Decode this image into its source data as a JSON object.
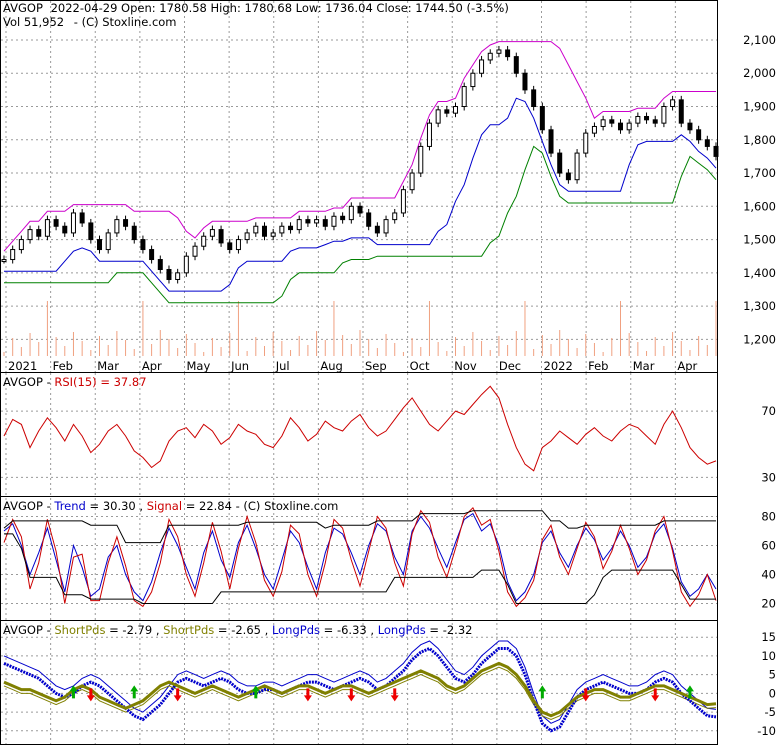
{
  "chart_data": [
    {
      "type": "candlestick",
      "header": {
        "ticker": "AVGOP",
        "text": "2022-04-29 Open: 1780.58  High: 1780.68  Low: 1736.04  Close: 1744.50 (-3.5%)",
        "vol": "Vol 51,952",
        "credit": "(C) Stoxline.com"
      },
      "ylim": [
        1150,
        2130
      ],
      "y_ticks": [
        "1,200",
        "1,300",
        "1,400",
        "1,500",
        "1,600",
        "1,700",
        "1,800",
        "1,900",
        "2,000",
        "2,100"
      ],
      "x_ticks": [
        "2021",
        "Feb",
        "Mar",
        "Apr",
        "May",
        "Jun",
        "Jul",
        "Aug",
        "Sep",
        "Oct",
        "Nov",
        "Dec",
        "2022",
        "Feb",
        "Mar",
        "Apr"
      ],
      "price_path": [
        1440,
        1470,
        1500,
        1530,
        1510,
        1560,
        1540,
        1520,
        1580,
        1550,
        1500,
        1470,
        1520,
        1560,
        1540,
        1500,
        1470,
        1440,
        1410,
        1380,
        1400,
        1450,
        1480,
        1510,
        1530,
        1490,
        1470,
        1500,
        1520,
        1540,
        1510,
        1520,
        1540,
        1530,
        1560,
        1550,
        1560,
        1540,
        1570,
        1560,
        1600,
        1580,
        1540,
        1520,
        1560,
        1580,
        1650,
        1700,
        1780,
        1850,
        1890,
        1880,
        1900,
        1960,
        2000,
        2040,
        2060,
        2070,
        2050,
        2000,
        1950,
        1900,
        1830,
        1760,
        1700,
        1680,
        1760,
        1820,
        1840,
        1860,
        1850,
        1830,
        1850,
        1870,
        1860,
        1850,
        1900,
        1920,
        1850,
        1830,
        1800,
        1780,
        1750
      ]
    },
    {
      "type": "line",
      "label": "RSI(15) = 37.87",
      "ticker": "AVGOP",
      "ylim": [
        20,
        90
      ],
      "y_ticks": [
        "30",
        "70"
      ],
      "values": [
        55,
        65,
        62,
        48,
        58,
        66,
        60,
        52,
        62,
        55,
        45,
        50,
        58,
        62,
        55,
        46,
        42,
        36,
        40,
        52,
        58,
        60,
        54,
        62,
        58,
        50,
        54,
        62,
        58,
        56,
        50,
        48,
        55,
        66,
        60,
        52,
        56,
        64,
        60,
        58,
        64,
        68,
        60,
        55,
        58,
        65,
        72,
        78,
        70,
        62,
        58,
        64,
        70,
        68,
        74,
        80,
        85,
        78,
        62,
        48,
        38,
        34,
        48,
        52,
        58,
        54,
        50,
        56,
        60,
        55,
        52,
        58,
        62,
        60,
        55,
        50,
        62,
        70,
        60,
        48,
        42,
        38,
        40
      ]
    },
    {
      "type": "line",
      "ticker": "AVGOP",
      "credit": "(C) Stoxline.com",
      "ylim": [
        10,
        90
      ],
      "y_ticks": [
        "20",
        "40",
        "60",
        "80"
      ],
      "series": [
        {
          "name": "Trend",
          "value_text": "30.30",
          "color": "#0000cc",
          "values": [
            70,
            75,
            60,
            40,
            55,
            72,
            50,
            28,
            60,
            45,
            25,
            30,
            52,
            60,
            40,
            28,
            22,
            35,
            55,
            72,
            60,
            45,
            30,
            55,
            70,
            50,
            38,
            62,
            74,
            58,
            40,
            30,
            50,
            70,
            62,
            45,
            30,
            55,
            72,
            68,
            55,
            40,
            60,
            75,
            70,
            52,
            40,
            70,
            80,
            72,
            58,
            45,
            62,
            78,
            82,
            70,
            75,
            60,
            35,
            22,
            28,
            40,
            62,
            70,
            55,
            45,
            60,
            72,
            64,
            50,
            58,
            70,
            60,
            45,
            52,
            68,
            75,
            58,
            35,
            25,
            30,
            40,
            30
          ]
        },
        {
          "name": "Signal",
          "value_text": "22.84",
          "color": "#cc0000",
          "values": [
            62,
            78,
            66,
            30,
            48,
            78,
            56,
            20,
            52,
            54,
            22,
            22,
            48,
            66,
            46,
            22,
            18,
            28,
            48,
            78,
            66,
            40,
            25,
            48,
            76,
            56,
            30,
            58,
            80,
            62,
            36,
            25,
            42,
            74,
            68,
            40,
            25,
            48,
            78,
            72,
            50,
            32,
            56,
            80,
            72,
            48,
            32,
            68,
            84,
            76,
            52,
            38,
            58,
            80,
            86,
            74,
            78,
            56,
            28,
            18,
            24,
            36,
            64,
            74,
            52,
            40,
            58,
            76,
            66,
            44,
            56,
            74,
            58,
            40,
            50,
            70,
            80,
            56,
            28,
            18,
            26,
            40,
            22
          ]
        }
      ]
    },
    {
      "type": "line",
      "ticker": "AVGOP",
      "ylim": [
        -13,
        18
      ],
      "y_ticks": [
        "-10",
        "-5",
        "0",
        "5",
        "10",
        "15"
      ],
      "series": [
        {
          "name": "ShortPds",
          "value_text": "-2.79",
          "color": "#808000"
        },
        {
          "name": "ShortPds",
          "value_text": "-2.65",
          "color": "#808000"
        },
        {
          "name": "LongPds",
          "value_text": "-6.33",
          "color": "#0000cc"
        },
        {
          "name": "LongPds",
          "value_text": "-2.32",
          "color": "#0000cc"
        }
      ],
      "long_path": [
        8,
        7,
        6,
        5,
        4,
        2,
        0,
        -1,
        0,
        2,
        3,
        2,
        0,
        -2,
        -4,
        -6,
        -7,
        -5,
        -3,
        0,
        3,
        4,
        3,
        2,
        3,
        4,
        3,
        1,
        0,
        0,
        1,
        1,
        0,
        1,
        2,
        3,
        3,
        2,
        1,
        2,
        3,
        4,
        3,
        1,
        2,
        4,
        6,
        9,
        11,
        12,
        10,
        7,
        4,
        3,
        5,
        8,
        10,
        12,
        12,
        10,
        5,
        -2,
        -8,
        -10,
        -9,
        -5,
        -1,
        1,
        2,
        3,
        2,
        1,
        0,
        0,
        1,
        3,
        4,
        3,
        0,
        -2,
        -4,
        -6,
        -6.3
      ],
      "short_path": [
        3,
        2,
        1,
        1,
        0,
        -1,
        -2,
        -1,
        1,
        2,
        1,
        -1,
        -2,
        -3,
        -4,
        -3,
        -2,
        0,
        2,
        3,
        2,
        1,
        0,
        1,
        2,
        1,
        0,
        -1,
        0,
        1,
        2,
        1,
        0,
        1,
        2,
        2,
        1,
        0,
        1,
        2,
        2,
        1,
        0,
        1,
        2,
        3,
        4,
        5,
        6,
        5,
        4,
        2,
        1,
        2,
        4,
        6,
        7,
        8,
        7,
        5,
        2,
        -2,
        -5,
        -6,
        -5,
        -3,
        -1,
        0,
        1,
        1,
        0,
        -1,
        -1,
        0,
        1,
        2,
        2,
        1,
        0,
        -1,
        -2,
        -3,
        -2.8
      ]
    }
  ]
}
